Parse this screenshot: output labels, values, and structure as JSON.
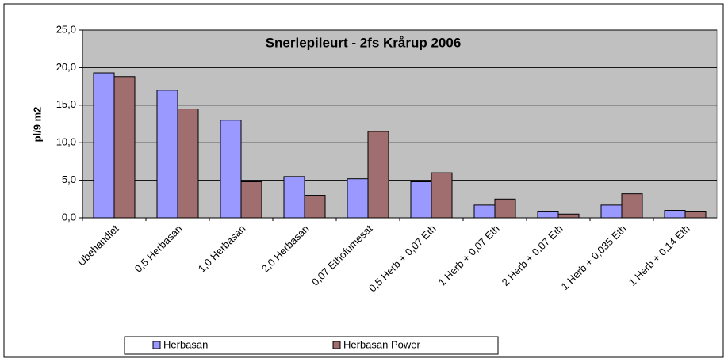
{
  "chart_data": {
    "type": "bar",
    "title": "Snerlepileurt - 2fs Krårup 2006",
    "ylabel": "pl/9 m2",
    "categories": [
      "Ubehandlet",
      "0,5 Herbasan",
      "1,0 Herbasan",
      "2,0 Herbasan",
      "0,07 Ethofumesat",
      "0,5 Herb + 0,07 Eth",
      "1 Herb + 0,07 Eth",
      "2 Herb + 0,07 Eth",
      "1 Herb + 0,035 Eth",
      "1 Herb + 0,14 Eth"
    ],
    "series": [
      {
        "name": "Herbasan",
        "color": "#9999ff",
        "values": [
          19.3,
          17.0,
          13.0,
          5.5,
          5.2,
          4.8,
          1.7,
          0.8,
          1.7,
          1.0
        ]
      },
      {
        "name": "Herbasan Power",
        "color": "#a06e6e",
        "values": [
          18.8,
          14.5,
          4.8,
          3.0,
          11.5,
          6.0,
          2.5,
          0.5,
          3.2,
          0.8
        ]
      }
    ],
    "ylim": [
      0,
      25
    ],
    "yticks": [
      {
        "value": 0,
        "label": "0,0"
      },
      {
        "value": 5,
        "label": "5,0"
      },
      {
        "value": 10,
        "label": "10,0"
      },
      {
        "value": 15,
        "label": "15,0"
      },
      {
        "value": 20,
        "label": "20,0"
      },
      {
        "value": 25,
        "label": "25,0"
      }
    ],
    "grid": true,
    "legend": "bottom"
  }
}
